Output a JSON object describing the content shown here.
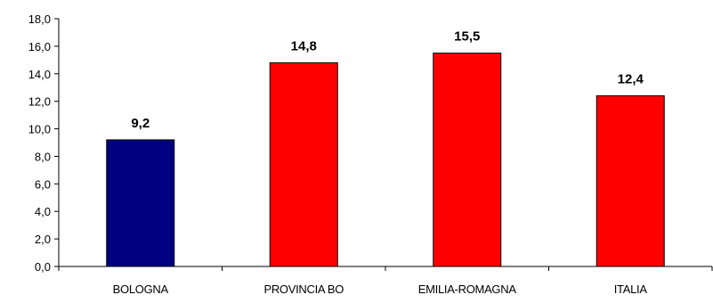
{
  "chart_data": {
    "type": "bar",
    "title": "",
    "xlabel": "",
    "ylabel": "",
    "categories": [
      "BOLOGNA",
      "PROVINCIA BO",
      "EMILIA-ROMAGNA",
      "ITALIA"
    ],
    "values": [
      9.2,
      14.8,
      15.5,
      12.4
    ],
    "data_labels": [
      "9,2",
      "14,8",
      "15,5",
      "12,4"
    ],
    "bar_colors": [
      "#000080",
      "#ff0000",
      "#ff0000",
      "#ff0000"
    ],
    "ylim": [
      0,
      18
    ],
    "yticks": [
      0,
      2,
      4,
      6,
      8,
      10,
      12,
      14,
      16,
      18
    ],
    "ytick_labels": [
      "0,0",
      "2,0",
      "4,0",
      "6,0",
      "8,0",
      "10,0",
      "12,0",
      "14,0",
      "16,0",
      "18,0"
    ],
    "grid": false,
    "legend": "none"
  }
}
